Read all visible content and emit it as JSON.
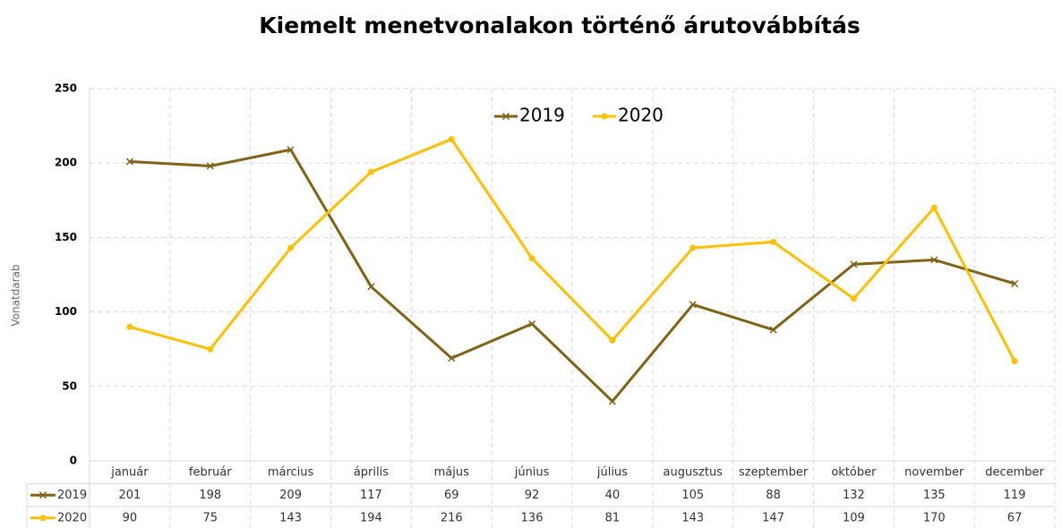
{
  "chart_data": {
    "type": "line",
    "title": "Kiemelt menetvonalakon történő árutovábbítás",
    "y_label": "Vonatdarab",
    "categories": [
      "január",
      "február",
      "március",
      "április",
      "május",
      "június",
      "július",
      "augusztus",
      "szeptember",
      "október",
      "november",
      "december"
    ],
    "series": [
      {
        "name": "2019",
        "color": "#7f6316",
        "marker": "x",
        "values": [
          201,
          198,
          209,
          117,
          69,
          92,
          40,
          105,
          88,
          132,
          135,
          119
        ]
      },
      {
        "name": "2020",
        "color": "#ffc000",
        "marker": "circle",
        "values": [
          90,
          75,
          143,
          194,
          216,
          136,
          81,
          143,
          147,
          109,
          170,
          67
        ]
      }
    ],
    "ylim": [
      0,
      250
    ],
    "yticks": [
      0,
      50,
      100,
      150,
      200,
      250
    ],
    "grid": true,
    "legend": "top"
  }
}
